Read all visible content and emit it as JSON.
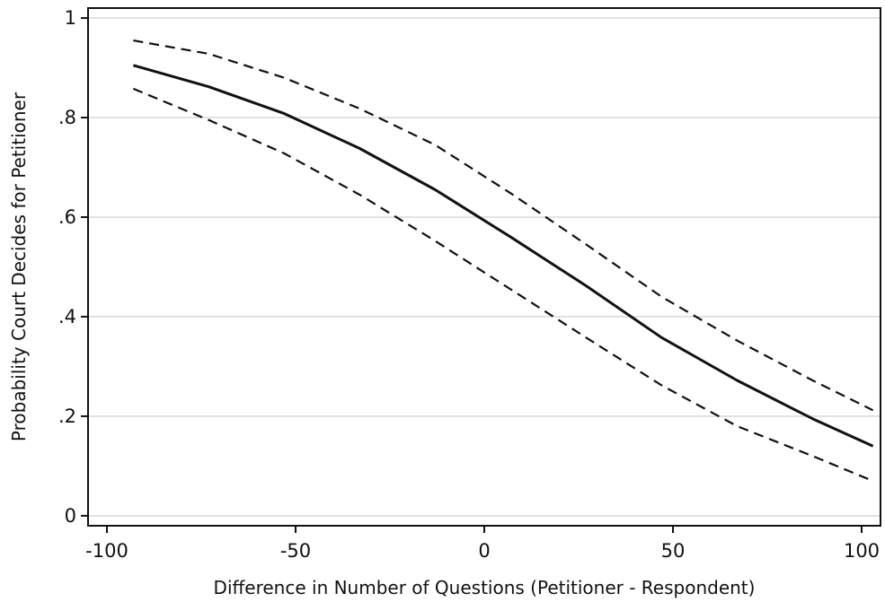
{
  "chart_data": {
    "type": "line",
    "title": "",
    "xlabel": "Difference in Number of Questions (Petitioner - Respondent)",
    "ylabel": "Probability Court Decides for Petitioner",
    "xlim": [
      -105,
      105
    ],
    "ylim": [
      -0.02,
      1.02
    ],
    "xticks": [
      -100,
      -50,
      0,
      50,
      100
    ],
    "xtick_labels": [
      "-100",
      "-50",
      "0",
      "50",
      "100"
    ],
    "yticks": [
      0,
      0.2,
      0.4,
      0.6,
      0.8,
      1
    ],
    "ytick_labels": [
      "0",
      ".2",
      ".4",
      ".6",
      ".8",
      "1"
    ],
    "grid": "horizontal",
    "legend": "none",
    "x": [
      -93,
      -73,
      -53,
      -33,
      -13,
      7,
      27,
      47,
      67,
      87,
      103
    ],
    "series": [
      {
        "role": "estimate",
        "style": "solid",
        "color": "#111111",
        "values": [
          0.905,
          0.862,
          0.808,
          0.738,
          0.655,
          0.56,
          0.462,
          0.358,
          0.272,
          0.195,
          0.14
        ]
      },
      {
        "role": "upper",
        "style": "dashed",
        "color": "#111111",
        "values": [
          0.955,
          0.928,
          0.88,
          0.818,
          0.745,
          0.648,
          0.545,
          0.44,
          0.352,
          0.272,
          0.212
        ]
      },
      {
        "role": "lower",
        "style": "dashed",
        "color": "#111111",
        "values": [
          0.858,
          0.795,
          0.728,
          0.645,
          0.552,
          0.455,
          0.358,
          0.262,
          0.18,
          0.12,
          0.07
        ]
      }
    ]
  }
}
